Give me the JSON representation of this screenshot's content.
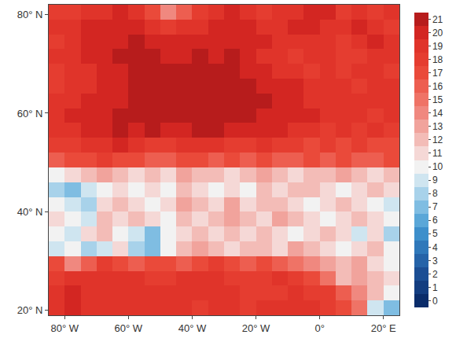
{
  "chart_data": {
    "type": "heatmap",
    "grid": false,
    "x": [
      -82.5,
      -77.5,
      -72.5,
      -67.5,
      -62.5,
      -57.5,
      -52.5,
      -47.5,
      -42.5,
      -37.5,
      -32.5,
      -27.5,
      -22.5,
      -17.5,
      -12.5,
      -7.5,
      -2.5,
      2.5,
      7.5,
      12.5,
      17.5,
      22.5
    ],
    "y": [
      20.5,
      23.5,
      26.5,
      29.5,
      32.5,
      35.5,
      38.5,
      41.5,
      44.5,
      47.5,
      50.5,
      53.5,
      56.5,
      59.5,
      62.5,
      65.5,
      68.5,
      71.5,
      74.5,
      77.5,
      80.5
    ],
    "z": [
      [
        19,
        20,
        19,
        19,
        19,
        19,
        19,
        19,
        19,
        18,
        19,
        19,
        18,
        19,
        19,
        19,
        19,
        18,
        17,
        15,
        9,
        7
      ],
      [
        19,
        20,
        19,
        19,
        19,
        19,
        19,
        19,
        19,
        19,
        19,
        19,
        18,
        18,
        18,
        19,
        18,
        18,
        16,
        14,
        12,
        10
      ],
      [
        18,
        19,
        19,
        19,
        19,
        19,
        18,
        18,
        19,
        19,
        19,
        18,
        18,
        18,
        19,
        18,
        17,
        15,
        12,
        13,
        12,
        11
      ],
      [
        17,
        14,
        16,
        18,
        17,
        16,
        17,
        17,
        16,
        17,
        18,
        17,
        16,
        17,
        16,
        15,
        14,
        13,
        12,
        13,
        11,
        10
      ],
      [
        9,
        10,
        8,
        9,
        11,
        8,
        7,
        10,
        12,
        13,
        12,
        11,
        12,
        12,
        11,
        13,
        12,
        11,
        10,
        11,
        12,
        10
      ],
      [
        10,
        9,
        11,
        12,
        10,
        9,
        7,
        10,
        11,
        12,
        11,
        12,
        11,
        12,
        11,
        10,
        11,
        12,
        11,
        9,
        11,
        8
      ],
      [
        11,
        10,
        9,
        12,
        11,
        12,
        11,
        10,
        12,
        11,
        12,
        13,
        12,
        11,
        13,
        12,
        11,
        10,
        11,
        12,
        11,
        10
      ],
      [
        10,
        9,
        8,
        11,
        12,
        11,
        10,
        11,
        13,
        12,
        11,
        13,
        11,
        12,
        12,
        11,
        10,
        11,
        12,
        11,
        10,
        9
      ],
      [
        8,
        7,
        9,
        10,
        11,
        10,
        11,
        10,
        12,
        11,
        10,
        11,
        10,
        12,
        11,
        12,
        12,
        11,
        10,
        11,
        12,
        11
      ],
      [
        10,
        11,
        12,
        13,
        12,
        11,
        12,
        11,
        13,
        12,
        12,
        11,
        12,
        13,
        12,
        11,
        12,
        12,
        13,
        12,
        11,
        12
      ],
      [
        16,
        17,
        17,
        18,
        17,
        17,
        16,
        16,
        17,
        17,
        16,
        17,
        16,
        17,
        16,
        16,
        17,
        16,
        17,
        16,
        16,
        17
      ],
      [
        18,
        18,
        19,
        19,
        20,
        19,
        18,
        18,
        19,
        19,
        19,
        18,
        18,
        19,
        18,
        18,
        17,
        18,
        17,
        18,
        17,
        17
      ],
      [
        19,
        19,
        20,
        20,
        21,
        20,
        21,
        20,
        20,
        21,
        21,
        20,
        20,
        20,
        20,
        19,
        19,
        18,
        19,
        18,
        19,
        18
      ],
      [
        19,
        20,
        20,
        20,
        21,
        21,
        21,
        21,
        21,
        21,
        21,
        21,
        21,
        20,
        20,
        20,
        20,
        19,
        19,
        19,
        18,
        19
      ],
      [
        19,
        19,
        20,
        20,
        20,
        21,
        21,
        21,
        21,
        21,
        21,
        21,
        21,
        21,
        20,
        20,
        19,
        19,
        19,
        19,
        19,
        19
      ],
      [
        18,
        19,
        19,
        20,
        20,
        21,
        21,
        21,
        21,
        21,
        21,
        21,
        21,
        20,
        20,
        20,
        19,
        19,
        19,
        18,
        19,
        19
      ],
      [
        18,
        19,
        19,
        20,
        20,
        21,
        21,
        21,
        21,
        21,
        21,
        21,
        20,
        20,
        19,
        19,
        18,
        19,
        18,
        19,
        19,
        18
      ],
      [
        19,
        19,
        20,
        20,
        21,
        21,
        21,
        20,
        20,
        21,
        20,
        21,
        20,
        19,
        19,
        18,
        19,
        19,
        18,
        18,
        19,
        19
      ],
      [
        18,
        19,
        20,
        20,
        20,
        21,
        20,
        20,
        20,
        20,
        20,
        20,
        20,
        20,
        19,
        19,
        19,
        19,
        18,
        19,
        20,
        19
      ],
      [
        19,
        19,
        20,
        20,
        20,
        20,
        19,
        18,
        19,
        19,
        20,
        20,
        20,
        19,
        19,
        20,
        20,
        19,
        19,
        20,
        19,
        18
      ],
      [
        18,
        18,
        19,
        19,
        20,
        19,
        17,
        14,
        16,
        18,
        19,
        20,
        19,
        18,
        19,
        19,
        20,
        20,
        18,
        19,
        18,
        19
      ]
    ],
    "xlim": [
      -85,
      25
    ],
    "xticks": [
      {
        "value": -80,
        "label": "80° W"
      },
      {
        "value": -60,
        "label": "60° W"
      },
      {
        "value": -40,
        "label": "40° W"
      },
      {
        "value": -20,
        "label": "20° W"
      },
      {
        "value": 0,
        "label": "0°"
      },
      {
        "value": 20,
        "label": "20° E"
      }
    ],
    "ylim": [
      19,
      82
    ],
    "yticks": [
      {
        "value": 20,
        "label": "20° N"
      },
      {
        "value": 40,
        "label": "40° N"
      },
      {
        "value": 60,
        "label": "60° N"
      },
      {
        "value": 80,
        "label": "80° N"
      }
    ],
    "zlim": [
      -0.5,
      21.5
    ],
    "zticks": [
      0,
      1,
      2,
      3,
      4,
      5,
      6,
      7,
      8,
      9,
      10,
      11,
      12,
      13,
      14,
      15,
      16,
      17,
      18,
      19,
      20,
      21
    ]
  }
}
